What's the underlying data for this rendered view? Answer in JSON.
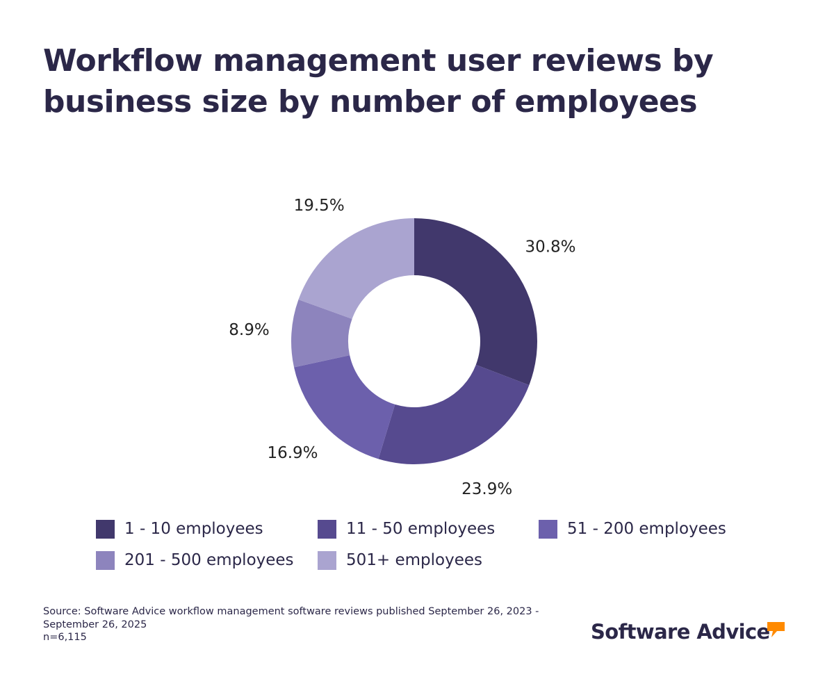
{
  "title": "Workflow management user reviews by business size by number of employees",
  "chart_data": {
    "type": "pie",
    "donut": true,
    "categories": [
      "1 - 10 employees",
      "11 - 50 employees",
      "51 - 200 employees",
      "201 - 500 employees",
      "501+ employees"
    ],
    "values": [
      30.8,
      23.9,
      16.9,
      8.9,
      19.5
    ],
    "data_labels": [
      "30.8%",
      "23.9%",
      "16.9%",
      "8.9%",
      "19.5%"
    ],
    "colors": [
      "#41386c",
      "#564a8f",
      "#6c60ac",
      "#8d84bd",
      "#aaa4d0"
    ],
    "legend_placement": "bottom"
  },
  "source": {
    "line1": "Source: Software Advice workflow management software reviews published September 26, 2023 - September 26, 2025",
    "line2": "n=6,115"
  },
  "brand": {
    "name": "Software Advice",
    "accent_color": "#ff8a00",
    "icon": "speech-bubble-icon"
  }
}
